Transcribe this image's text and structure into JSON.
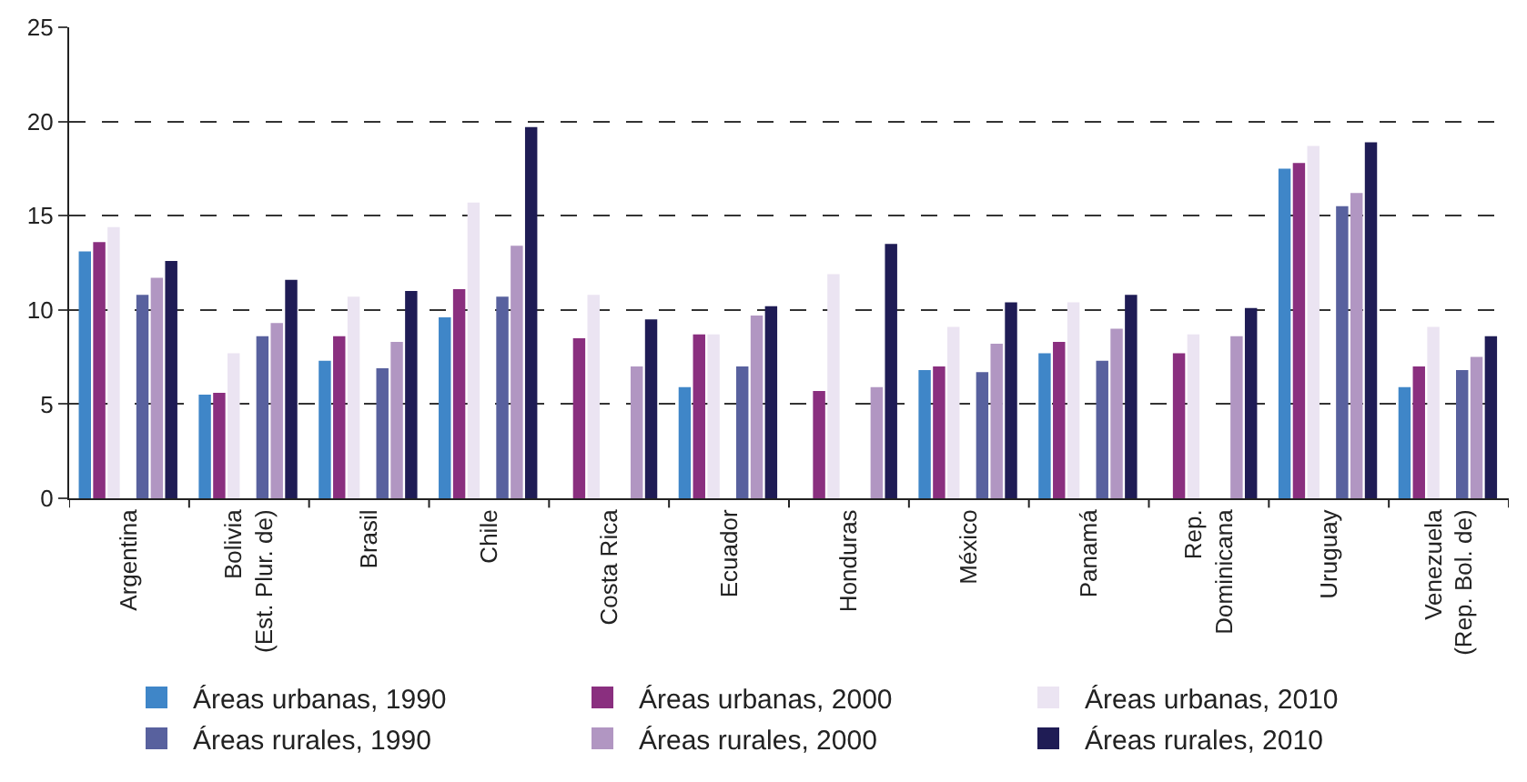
{
  "chart_data": {
    "type": "bar",
    "categories": [
      "Argentina",
      "Bolivia\n(Est. Plur. de)",
      "Brasil",
      "Chile",
      "Costa Rica",
      "Ecuador",
      "Honduras",
      "México",
      "Panamá",
      "Rep.\nDominicana",
      "Uruguay",
      "Venezuela\n(Rep. Bol. de)"
    ],
    "series": [
      {
        "name": "Áreas urbanas, 1990",
        "color": "#3f86c8",
        "values": [
          13.1,
          5.5,
          7.3,
          9.6,
          null,
          5.9,
          null,
          6.8,
          7.7,
          null,
          17.5,
          5.9
        ]
      },
      {
        "name": "Áreas urbanas, 2000",
        "color": "#8a2f7f",
        "values": [
          13.6,
          5.6,
          8.6,
          11.1,
          8.5,
          8.7,
          5.7,
          7.0,
          8.3,
          7.7,
          17.8,
          7.0
        ]
      },
      {
        "name": "Áreas urbanas, 2010",
        "color": "#ebe4f2",
        "values": [
          14.4,
          7.7,
          10.7,
          15.7,
          10.8,
          8.7,
          11.9,
          9.1,
          10.4,
          8.7,
          18.7,
          9.1
        ]
      },
      {
        "name": "Áreas rurales, 1990",
        "color": "#58619e",
        "values": [
          10.8,
          8.6,
          6.9,
          10.7,
          null,
          7.0,
          null,
          6.7,
          7.3,
          null,
          15.5,
          6.8
        ]
      },
      {
        "name": "Áreas rurales, 2000",
        "color": "#b196c2",
        "values": [
          11.7,
          9.3,
          8.3,
          13.4,
          7.0,
          9.7,
          5.9,
          8.2,
          9.0,
          8.6,
          16.2,
          7.5
        ]
      },
      {
        "name": "Áreas rurales, 2010",
        "color": "#1f1c55",
        "values": [
          12.6,
          11.6,
          11.0,
          19.7,
          9.5,
          10.2,
          13.5,
          10.4,
          10.8,
          10.1,
          18.9,
          8.6
        ]
      }
    ],
    "ylim": [
      0,
      25
    ],
    "yticks": [
      0,
      5,
      10,
      15,
      20,
      25
    ],
    "grid": "y",
    "legend": "bottom"
  }
}
